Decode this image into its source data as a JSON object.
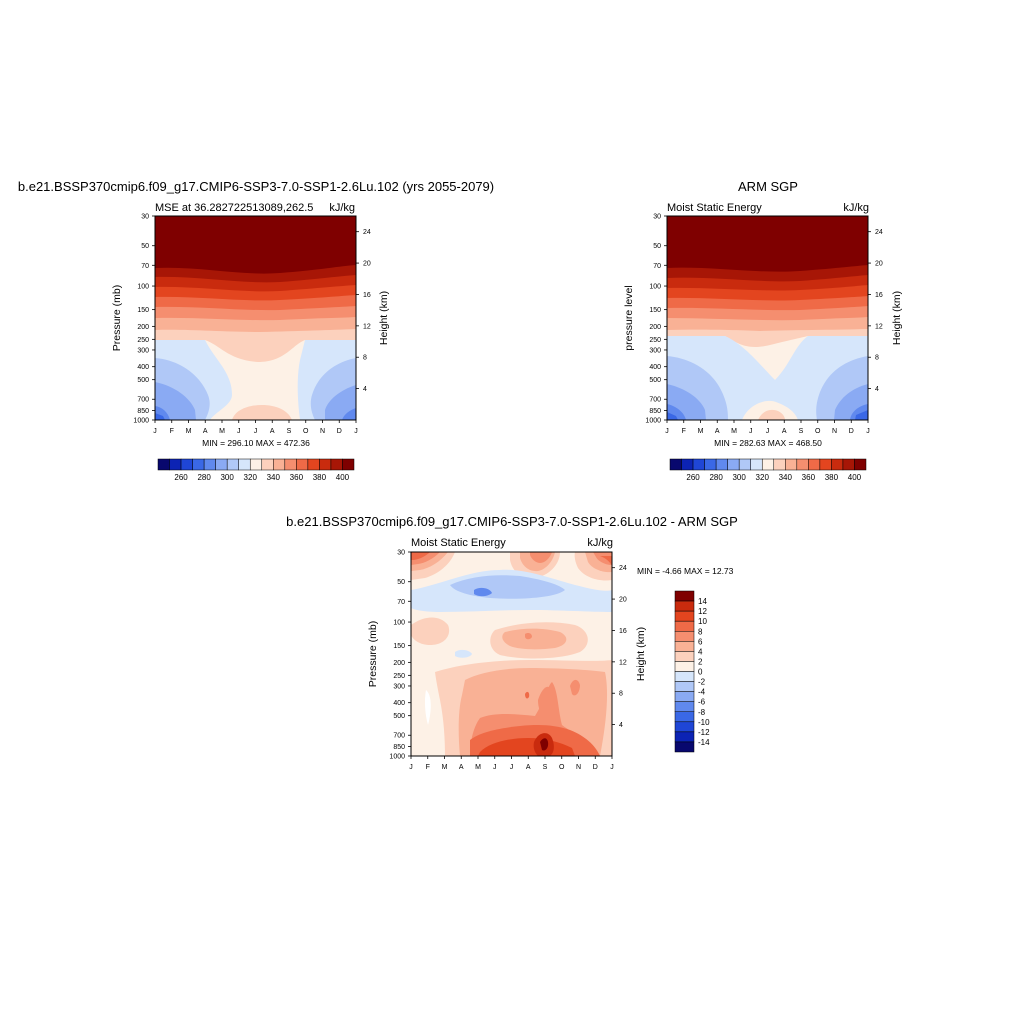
{
  "panels": [
    {
      "title": "b.e21.BSSP370cmip6.f09_g17.CMIP6-SSP3-7.0-SSP1-2.6Lu.102 (yrs 2055-2079)",
      "left_string": "MSE at 36.282722513089,262.5",
      "right_string": "kJ/kg",
      "ylabel_left": "Pressure (mb)",
      "ylabel_right": "Height (km)",
      "minmax": "MIN = 296.10 MAX = 472.36"
    },
    {
      "title": "ARM SGP",
      "left_string": "Moist Static Energy",
      "right_string": "kJ/kg",
      "ylabel_left": "pressure level",
      "ylabel_right": "Height (km)",
      "minmax": "MIN = 282.63 MAX = 468.50"
    },
    {
      "title": "b.e21.BSSP370cmip6.f09_g17.CMIP6-SSP3-7.0-SSP1-2.6Lu.102 - ARM SGP",
      "left_string": "Moist Static Energy",
      "right_string": "kJ/kg",
      "ylabel_left": "Pressure (mb)",
      "ylabel_right": "Height (km)",
      "minmax": "MIN =  -4.66 MAX =  12.73"
    }
  ],
  "chart_data": [
    {
      "type": "heatmap",
      "title": "b.e21.BSSP370cmip6.f09_g17.CMIP6-SSP3-7.0-SSP1-2.6Lu.102 (yrs 2055-2079)",
      "subtitle": "MSE at 36.282722513089,262.5",
      "units": "kJ/kg",
      "xlabel": "",
      "ylabel": "Pressure (mb)",
      "ylabel_right": "Height (km)",
      "x_ticks": [
        "J",
        "F",
        "M",
        "A",
        "M",
        "J",
        "J",
        "A",
        "S",
        "O",
        "N",
        "D",
        "J"
      ],
      "y_ticks": [
        "30",
        "50",
        "70",
        "100",
        "150",
        "200",
        "250",
        "300",
        "400",
        "500",
        "700",
        "850",
        "1000"
      ],
      "y_ticks_right": [
        "24",
        "20",
        "16",
        "12",
        "8",
        "4"
      ],
      "colorbar_ticks": [
        "260",
        "280",
        "300",
        "320",
        "340",
        "360",
        "380",
        "400"
      ],
      "min": 296.1,
      "max": 472.36
    },
    {
      "type": "heatmap",
      "title": "ARM SGP",
      "subtitle": "Moist Static Energy",
      "units": "kJ/kg",
      "xlabel": "",
      "ylabel": "pressure level",
      "ylabel_right": "Height (km)",
      "x_ticks": [
        "J",
        "F",
        "M",
        "A",
        "M",
        "J",
        "J",
        "A",
        "S",
        "O",
        "N",
        "D",
        "J"
      ],
      "y_ticks": [
        "30",
        "50",
        "70",
        "100",
        "150",
        "200",
        "250",
        "300",
        "400",
        "500",
        "700",
        "850",
        "1000"
      ],
      "y_ticks_right": [
        "24",
        "20",
        "16",
        "12",
        "8",
        "4"
      ],
      "colorbar_ticks": [
        "260",
        "280",
        "300",
        "320",
        "340",
        "360",
        "380",
        "400"
      ],
      "min": 282.63,
      "max": 468.5
    },
    {
      "type": "heatmap",
      "title": "b.e21.BSSP370cmip6.f09_g17.CMIP6-SSP3-7.0-SSP1-2.6Lu.102 - ARM SGP",
      "subtitle": "Moist Static Energy",
      "units": "kJ/kg",
      "xlabel": "",
      "ylabel": "Pressure (mb)",
      "ylabel_right": "Height (km)",
      "x_ticks": [
        "J",
        "F",
        "M",
        "A",
        "M",
        "J",
        "J",
        "A",
        "S",
        "O",
        "N",
        "D",
        "J"
      ],
      "y_ticks": [
        "30",
        "50",
        "70",
        "100",
        "150",
        "200",
        "250",
        "300",
        "400",
        "500",
        "700",
        "850",
        "1000"
      ],
      "y_ticks_right": [
        "24",
        "20",
        "16",
        "12",
        "8",
        "4"
      ],
      "colorbar_ticks": [
        "14",
        "12",
        "10",
        "8",
        "6",
        "4",
        "2",
        "0",
        "-2",
        "-4",
        "-6",
        "-8",
        "-10",
        "-12",
        "-14"
      ],
      "min": -4.66,
      "max": 12.73
    }
  ],
  "palette": {
    "levels17": [
      "#08086e",
      "#0c23b4",
      "#1f46d6",
      "#3a68e6",
      "#6089ee",
      "#8aaaf3",
      "#b0c8f7",
      "#d6e6fb",
      "#fdf1e6",
      "#fcd1bd",
      "#f9b195",
      "#f58e6f",
      "#ef6a47",
      "#e3451f",
      "#c92b0e",
      "#a71606",
      "#7f0000"
    ],
    "diff_levels": [
      "#08086e",
      "#0c23b4",
      "#1f46d6",
      "#3a68e6",
      "#6089ee",
      "#8aaaf3",
      "#b0c8f7",
      "#d6e6fb",
      "#fdf1e6",
      "#fcd1bd",
      "#f9b195",
      "#f58e6f",
      "#ef6a47",
      "#e3451f",
      "#c92b0e",
      "#7f0000"
    ]
  }
}
